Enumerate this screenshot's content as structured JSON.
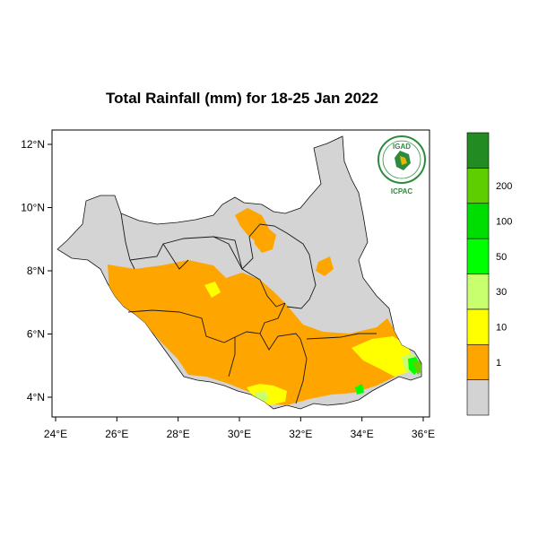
{
  "title": "Total Rainfall (mm) for 18-25 Jan 2022",
  "map": {
    "x_ticks": [
      "24°E",
      "26°E",
      "28°E",
      "30°E",
      "32°E",
      "34°E",
      "36°E"
    ],
    "y_ticks": [
      "4°N",
      "6°N",
      "8°N",
      "10°N",
      "12°N"
    ],
    "country_fill": "#d4d4d4",
    "border_color": "#1a1a1a"
  },
  "legend": {
    "bins": [
      {
        "label": "",
        "color": "#d3d3d3"
      },
      {
        "label": "1",
        "color": "#ffa500"
      },
      {
        "label": "10",
        "color": "#ffff00"
      },
      {
        "label": "30",
        "color": "#c8ff6e"
      },
      {
        "label": "50",
        "color": "#00ff00"
      },
      {
        "label": "100",
        "color": "#00dd00"
      },
      {
        "label": "200",
        "color": "#5fce00"
      },
      {
        "label": "",
        "color": "#228b22"
      }
    ]
  },
  "logo": {
    "top_text": "IGAD",
    "bottom_text": "ICPAC"
  },
  "rain_colors": {
    "c1_10": "#ffa500",
    "c10_30": "#ffff00",
    "c30_50": "#c8ff6e",
    "c50_100": "#00ff00",
    "c100_200": "#66cc00",
    "c200": "#228b22"
  }
}
